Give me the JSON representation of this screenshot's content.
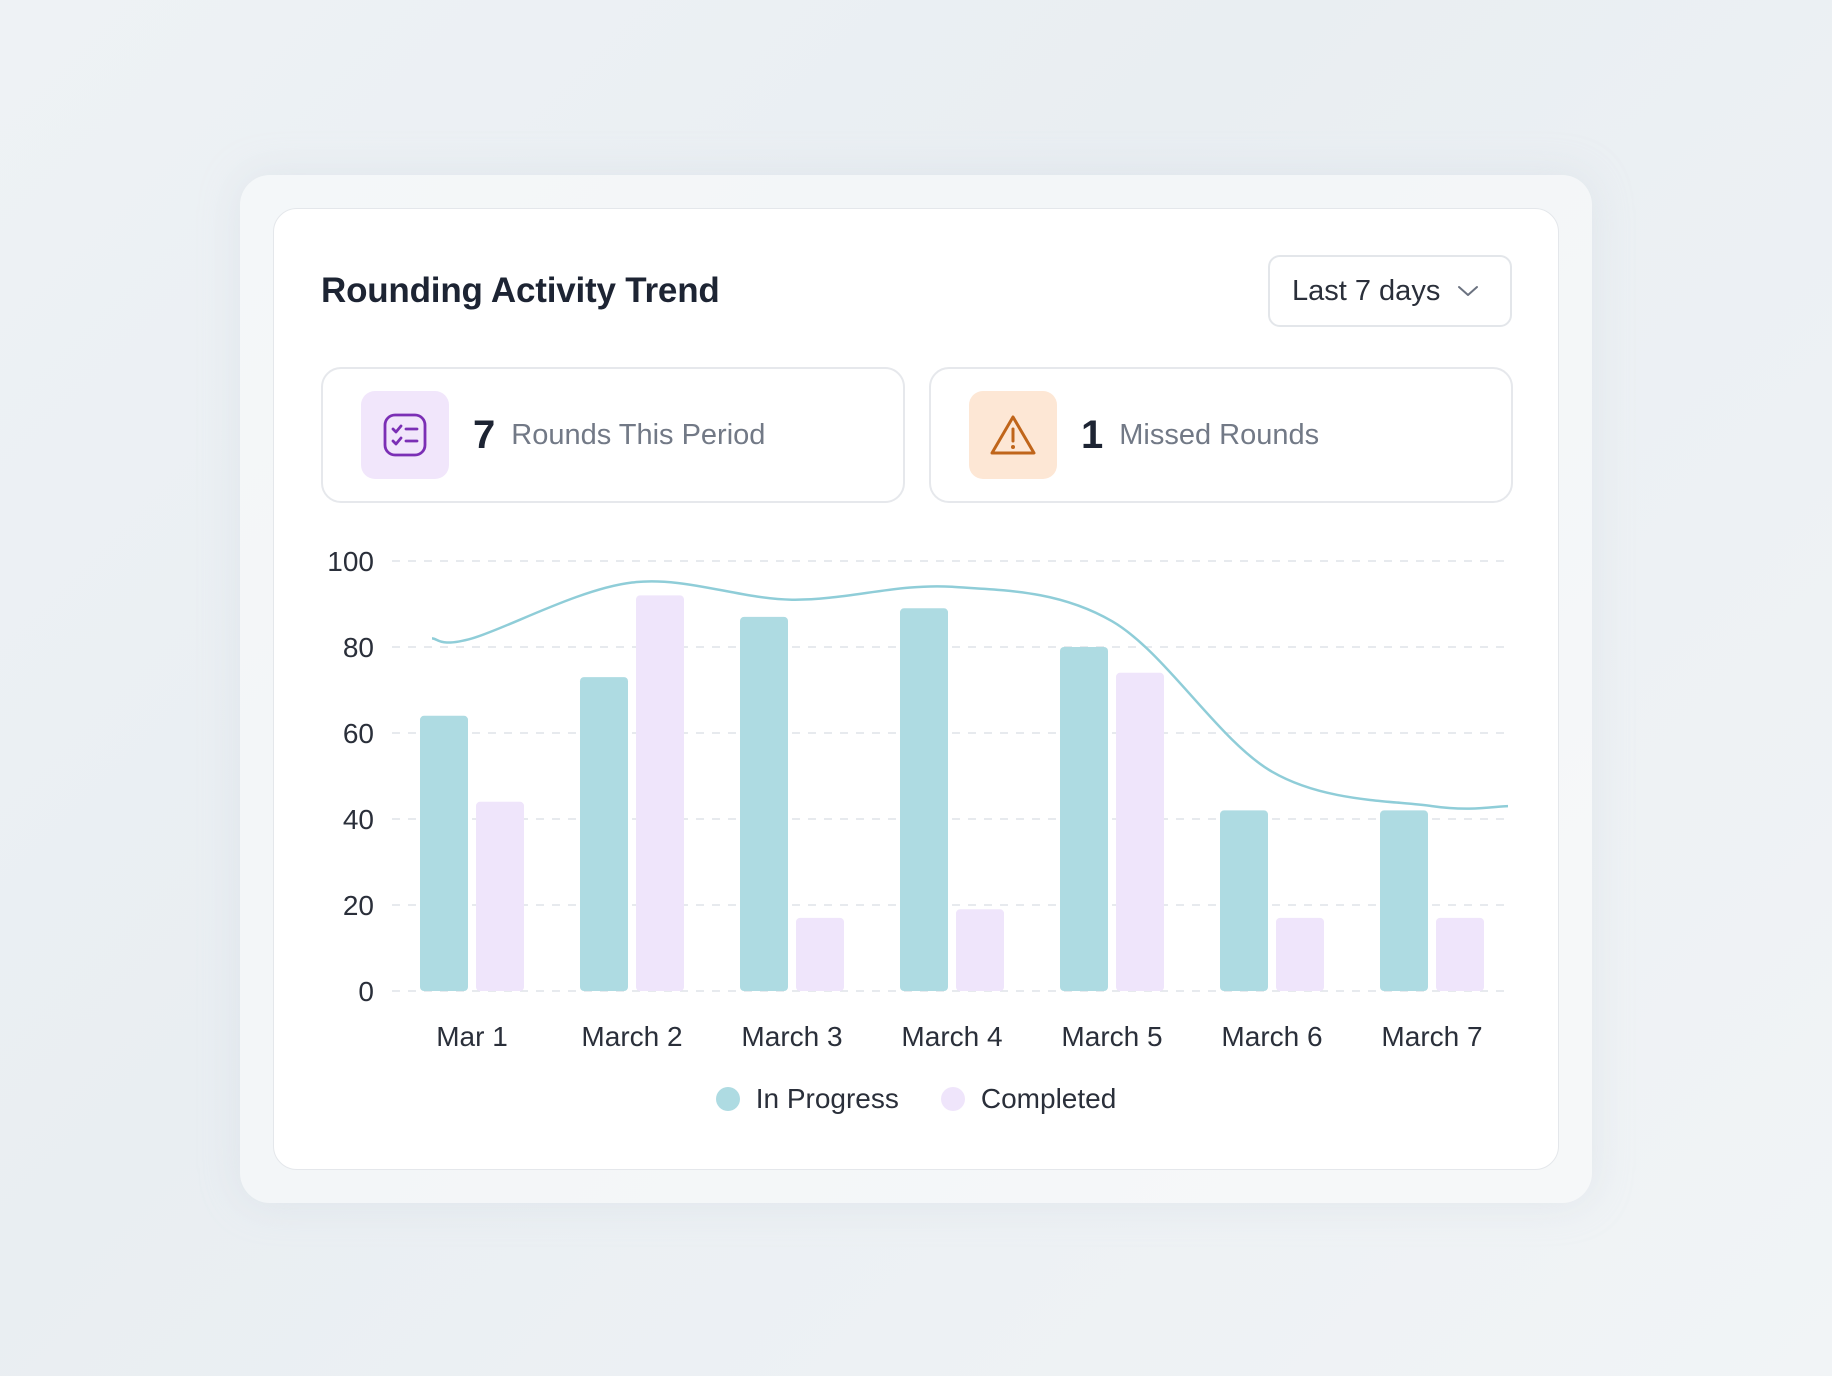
{
  "card": {
    "title": "Rounding Activity Trend",
    "range_select": {
      "value": "Last 7 days",
      "icon": "chevron-down-icon"
    }
  },
  "stats": {
    "rounds": {
      "value": "7",
      "label": "Rounds This Period",
      "icon": "checklist-icon",
      "icon_color": "#7b2fb5"
    },
    "missed": {
      "value": "1",
      "label": "Missed Rounds",
      "icon": "warning-icon",
      "icon_color": "#c0651a"
    }
  },
  "colors": {
    "in_progress": "#aedbe2",
    "completed": "#efe5fb",
    "trend_line": "#8fcdd8",
    "grid": "#dfe3e8"
  },
  "chart_data": {
    "type": "bar",
    "categories": [
      "Mar 1",
      "March 2",
      "March 3",
      "March 4",
      "March 5",
      "March 6",
      "March 7"
    ],
    "series": [
      {
        "name": "In Progress",
        "values": [
          64,
          73,
          87,
          89,
          80,
          42,
          42
        ]
      },
      {
        "name": "Completed",
        "values": [
          44,
          92,
          17,
          19,
          74,
          17,
          17
        ]
      }
    ],
    "trend_line": {
      "values": [
        82,
        95,
        91,
        94,
        86,
        51,
        43
      ]
    },
    "ylim": [
      0,
      100
    ],
    "yticks": [
      0,
      20,
      40,
      60,
      80,
      100
    ],
    "grid": true,
    "legend_position": "bottom-center"
  }
}
